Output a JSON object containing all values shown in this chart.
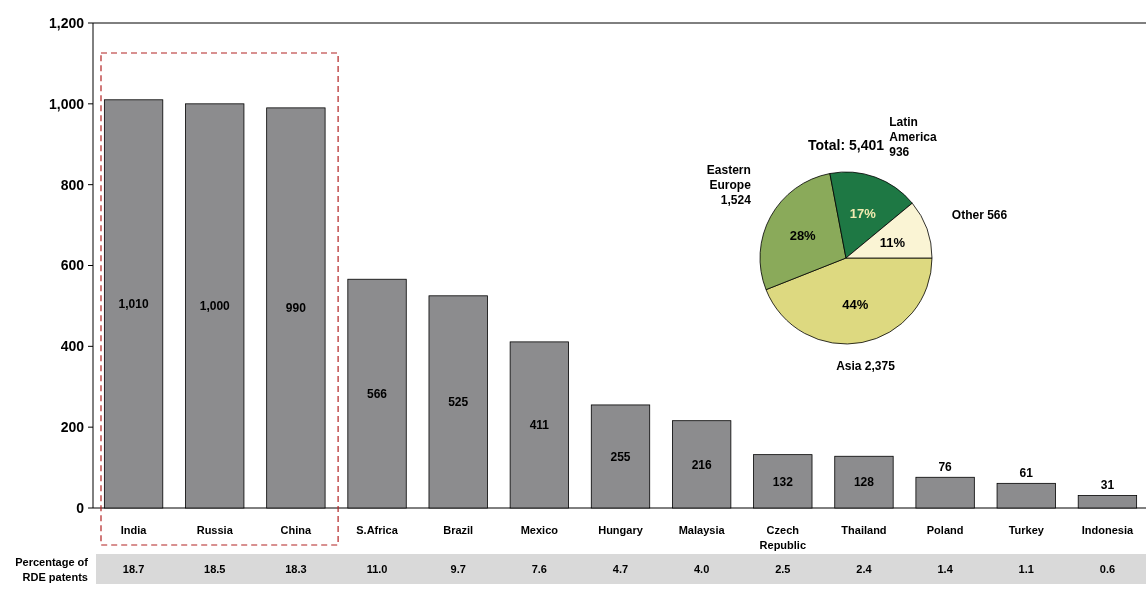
{
  "chart_data": [
    {
      "type": "bar",
      "categories": [
        "India",
        "Russia",
        "China",
        "S.Africa",
        "Brazil",
        "Mexico",
        "Hungary",
        "Malaysia",
        "Czech Republic",
        "Thailand",
        "Poland",
        "Turkey",
        "Indonesia"
      ],
      "values": [
        1010,
        1000,
        990,
        566,
        525,
        411,
        255,
        216,
        132,
        128,
        76,
        61,
        31
      ],
      "color": "#8c8c8e",
      "ylim": [
        0,
        1200
      ],
      "yticks": [
        0,
        200,
        400,
        600,
        800,
        {
          "value": 1000,
          "label": "1,000"
        },
        {
          "value": 1200,
          "label": "1,200"
        }
      ],
      "value_labels": [
        "1,010",
        "1,000",
        "990",
        "566",
        "525",
        "411",
        "255",
        "216",
        "132",
        "128",
        "76",
        "61",
        "31"
      ],
      "annotations": [
        "Percentage of RDE patents",
        "18.7",
        "18.5",
        "18.3",
        "11.0",
        "9.7",
        "7.6",
        "4.7",
        "4.0",
        "2.5",
        "2.4",
        "1.4",
        "1.1",
        "0.6"
      ]
    },
    {
      "type": "pie",
      "title": "Total: 5,401",
      "categories": [
        "Asia 2,375",
        "Eastern Europe 1,524",
        "Latin America 936",
        "Other 566"
      ],
      "values": [
        44,
        28,
        17,
        11
      ],
      "colors": [
        "#ddd980",
        "#8aaa5a",
        "#1e7844",
        "#faf4d4"
      ],
      "value_labels": [
        "44%",
        "28%",
        "17%",
        "11%"
      ]
    }
  ]
}
